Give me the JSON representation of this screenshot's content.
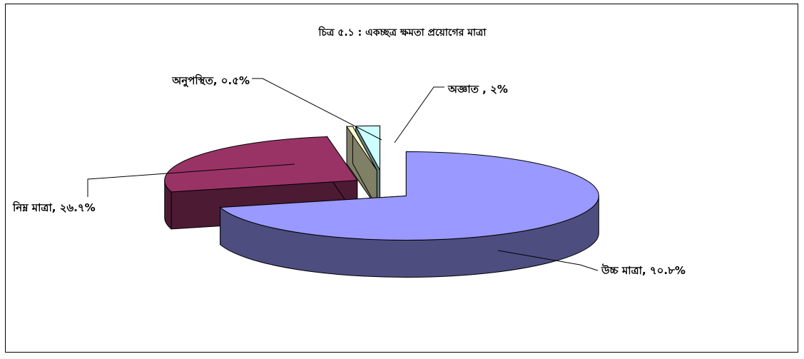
{
  "chart_data": {
    "type": "pie",
    "title": "চিত্র ৫.১ :  একচ্ছত্র ক্ষমতা প্রয়োগের মাত্রা",
    "three_d": true,
    "exploded": true,
    "slices": [
      {
        "name": "উচ্চ মাত্রা",
        "value": 70.8,
        "label": "উচ্চ মাত্রা, ৭০.৮%",
        "color": "#9999ff",
        "side_color": "#4d4d80"
      },
      {
        "name": "নিম্ন মাত্রা",
        "value": 26.7,
        "label": "নিম্ন মাত্রা, ২৬.৭%",
        "color": "#993366",
        "side_color": "#4d1a33"
      },
      {
        "name": "অনুপস্থিত",
        "value": 0.5,
        "label": "অনুপস্থিত, ০.৫%",
        "color": "#ffffcc",
        "side_color": "#808066"
      },
      {
        "name": "অজ্ঞাত",
        "value": 2.0,
        "label": "অজ্ঞাত , ২%",
        "color": "#ccffff",
        "side_color": "#668080"
      }
    ],
    "legend": "none"
  }
}
